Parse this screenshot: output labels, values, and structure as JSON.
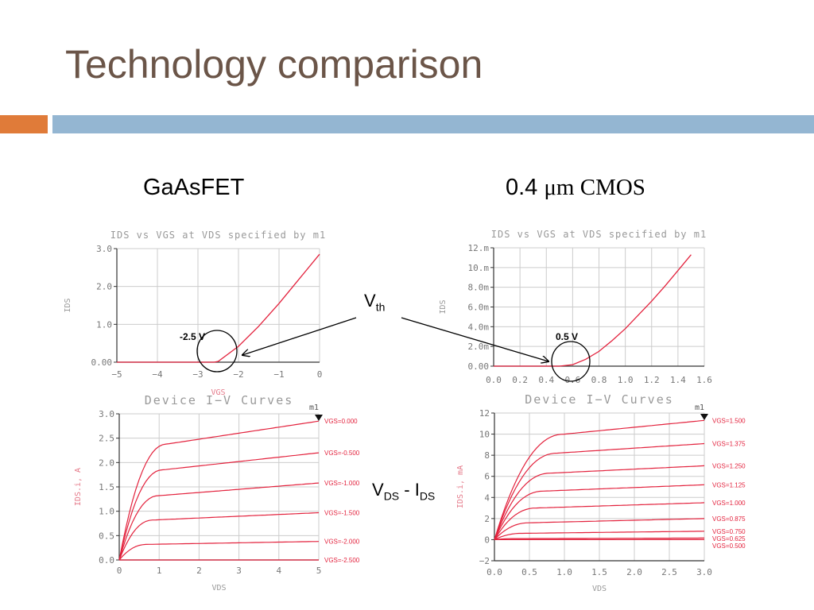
{
  "slide": {
    "title": "Technology comparison",
    "left_heading": "GaAsFET",
    "right_heading_prefix": "0.4 ",
    "right_heading_unit": "μm CMOS",
    "vth_label": "V",
    "vth_sub": "th",
    "vds_ids_v": "V",
    "vds_ids_v_sub": "DS",
    "vds_ids_mid": " - I",
    "vds_ids_i_sub": "DS",
    "ann_left": "-2.5 V",
    "ann_right": "0.5 V",
    "marker_label": "m1"
  },
  "colors": {
    "title": "#6b5548",
    "accent_orange": "#e07b39",
    "accent_blue": "#94b6d2",
    "curve": "#e3223d",
    "grid": "#cccccc"
  },
  "chart_data": [
    {
      "id": "gaas-ids-vgs",
      "type": "line",
      "title": "IDS vs VGS at VDS specified by m1",
      "xlabel": "VGS",
      "ylabel": "IDS",
      "xlim": [
        -5,
        0
      ],
      "ylim": [
        0,
        3
      ],
      "xticks": [
        -5,
        -4,
        -3,
        -2,
        -1,
        0
      ],
      "xtick_labels": [
        "−5",
        "−4",
        "−3",
        "−2",
        "−1",
        "0"
      ],
      "yticks": [
        0,
        1,
        2,
        3
      ],
      "ytick_labels": [
        "0.00",
        "1.0",
        "2.0",
        "3.0"
      ],
      "series": [
        {
          "x": [
            -5,
            -2.6,
            -2.5,
            -2.0,
            -1.5,
            -1.0,
            -0.5,
            0
          ],
          "y": [
            0,
            0,
            0.02,
            0.42,
            0.95,
            1.55,
            2.2,
            2.85
          ]
        }
      ]
    },
    {
      "id": "cmos-ids-vgs",
      "type": "line",
      "title": "IDS vs VGS at VDS specified by m1",
      "xlabel": "",
      "ylabel": "IDS",
      "xlim": [
        0,
        1.6
      ],
      "ylim": [
        0,
        12
      ],
      "xticks": [
        0,
        0.2,
        0.4,
        0.6,
        0.8,
        1.0,
        1.2,
        1.4,
        1.6
      ],
      "xtick_labels": [
        "0.0",
        "0.2",
        "0.4",
        "0.6",
        "0.8",
        "1.0",
        "1.2",
        "1.4",
        "1.6"
      ],
      "yticks": [
        0,
        2,
        4,
        6,
        8,
        10,
        12
      ],
      "ytick_labels": [
        "0.00",
        "2.0m",
        "4.0m",
        "6.0m",
        "8.0m",
        "10.m",
        "12.m"
      ],
      "series": [
        {
          "x": [
            0,
            0.5,
            0.6,
            0.7,
            0.8,
            0.9,
            1.0,
            1.1,
            1.2,
            1.3,
            1.4,
            1.5
          ],
          "y": [
            0,
            0,
            0.15,
            0.7,
            1.5,
            2.6,
            3.8,
            5.2,
            6.6,
            8.1,
            9.7,
            11.3
          ]
        }
      ]
    },
    {
      "id": "gaas-iv",
      "type": "line",
      "title": "Device I−V Curves",
      "xlabel": "VDS",
      "ylabel": "IDS.i, A",
      "xlim": [
        0,
        5
      ],
      "ylim": [
        0,
        3
      ],
      "xticks": [
        0,
        1,
        2,
        3,
        4,
        5
      ],
      "xtick_labels": [
        "0",
        "1",
        "2",
        "3",
        "4",
        "5"
      ],
      "yticks": [
        0,
        0.5,
        1.0,
        1.5,
        2.0,
        2.5,
        3.0
      ],
      "ytick_labels": [
        "0.0",
        "0.5",
        "1.0",
        "1.5",
        "2.0",
        "2.5",
        "3.0"
      ],
      "series": [
        {
          "name": "VGS=0.000",
          "knee": 1.2,
          "sat": 2.38,
          "end": 2.85
        },
        {
          "name": "VGS=-0.500",
          "knee": 1.1,
          "sat": 1.85,
          "end": 2.2
        },
        {
          "name": "VGS=-1.000",
          "knee": 1.0,
          "sat": 1.32,
          "end": 1.58
        },
        {
          "name": "VGS=-1.500",
          "knee": 0.85,
          "sat": 0.82,
          "end": 0.97
        },
        {
          "name": "VGS=-2.000",
          "knee": 0.7,
          "sat": 0.32,
          "end": 0.38
        },
        {
          "name": "VGS=-2.500",
          "knee": 0.4,
          "sat": 0.0,
          "end": 0.0
        }
      ],
      "legend_values": [
        "VGS=0.000",
        "VGS=-0.500",
        "VGS=-1.000",
        "VGS=-1.500",
        "VGS=-2.000",
        "VGS=-2.500"
      ]
    },
    {
      "id": "cmos-iv",
      "type": "line",
      "title": "Device I−V Curves",
      "xlabel": "VDS",
      "ylabel": "IDS.i, mA",
      "xlim": [
        0,
        3
      ],
      "ylim": [
        -2,
        12
      ],
      "xticks": [
        0,
        0.5,
        1.0,
        1.5,
        2.0,
        2.5,
        3.0
      ],
      "xtick_labels": [
        "0.0",
        "0.5",
        "1.0",
        "1.5",
        "2.0",
        "2.5",
        "3.0"
      ],
      "yticks": [
        -2,
        0,
        2,
        4,
        6,
        8,
        10,
        12
      ],
      "ytick_labels": [
        "−2",
        "0",
        "2",
        "4",
        "6",
        "8",
        "10",
        "12"
      ],
      "series": [
        {
          "name": "VGS=1.500",
          "knee": 1.0,
          "sat": 10.0,
          "end": 11.3
        },
        {
          "name": "VGS=1.375",
          "knee": 0.9,
          "sat": 8.2,
          "end": 9.1
        },
        {
          "name": "VGS=1.250",
          "knee": 0.8,
          "sat": 6.3,
          "end": 7.0
        },
        {
          "name": "VGS=1.125",
          "knee": 0.7,
          "sat": 4.6,
          "end": 5.2
        },
        {
          "name": "VGS=1.000",
          "knee": 0.6,
          "sat": 3.0,
          "end": 3.5
        },
        {
          "name": "VGS=0.875",
          "knee": 0.5,
          "sat": 1.6,
          "end": 2.0
        },
        {
          "name": "VGS=0.750",
          "knee": 0.4,
          "sat": 0.6,
          "end": 0.8
        },
        {
          "name": "VGS=0.625",
          "knee": 0.3,
          "sat": 0.1,
          "end": 0.15
        },
        {
          "name": "VGS=0.500",
          "knee": 0.2,
          "sat": 0.0,
          "end": 0.0
        }
      ],
      "legend_values": [
        "VGS=1.500",
        "VGS=1.375",
        "VGS=1.250",
        "VGS=1.125",
        "VGS=1.000",
        "VGS=0.875",
        "VGS=0.750",
        "VGS=0.625",
        "VGS=0.500"
      ]
    }
  ]
}
